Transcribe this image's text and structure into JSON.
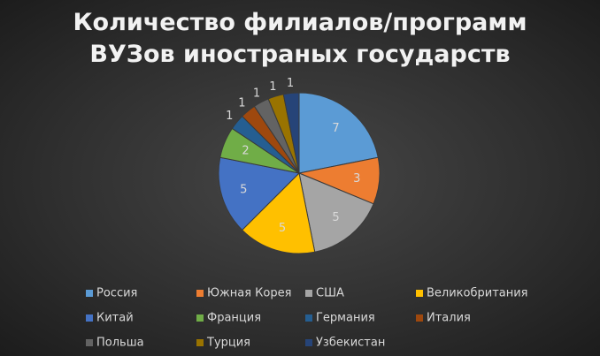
{
  "chart_data": {
    "type": "pie",
    "title": "Количество филиалов/программ ВУЗов иностраных государств",
    "categories": [
      "Россия",
      "Южная Корея",
      "США",
      "Великобритания",
      "Китай",
      "Франция",
      "Германия",
      "Италия",
      "Польша",
      "Турция",
      "Узбекистан"
    ],
    "values": [
      7,
      3,
      5,
      5,
      5,
      2,
      1,
      1,
      1,
      1,
      1
    ],
    "colors": [
      "#5b9bd5",
      "#ed7d31",
      "#a5a5a5",
      "#ffc000",
      "#4472c4",
      "#70ad47",
      "#255e91",
      "#9e480e",
      "#636363",
      "#997300",
      "#264478"
    ],
    "legend": "bottom"
  }
}
